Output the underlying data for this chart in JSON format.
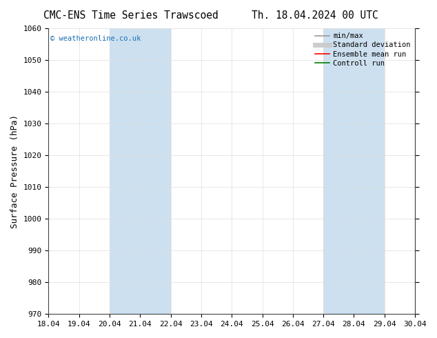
{
  "title": "CMC-ENS Time Series Trawscoed",
  "title2": "Th. 18.04.2024 00 UTC",
  "ylabel": "Surface Pressure (hPa)",
  "ylim": [
    970,
    1060
  ],
  "yticks": [
    970,
    980,
    990,
    1000,
    1010,
    1020,
    1030,
    1040,
    1050,
    1060
  ],
  "xlim_start": 0,
  "xlim_end": 12,
  "xtick_positions": [
    0,
    1,
    2,
    3,
    4,
    5,
    6,
    7,
    8,
    9,
    10,
    11,
    12
  ],
  "xtick_labels": [
    "18.04",
    "19.04",
    "20.04",
    "21.04",
    "22.04",
    "23.04",
    "24.04",
    "25.04",
    "26.04",
    "27.04",
    "28.04",
    "29.04",
    "30.04"
  ],
  "shaded_regions": [
    {
      "xstart": 2,
      "xend": 4,
      "color": "#cce0f0"
    },
    {
      "xstart": 9,
      "xend": 11,
      "color": "#cce0f0"
    }
  ],
  "watermark": "© weatheronline.co.uk",
  "watermark_color": "#1a6eb5",
  "legend_entries": [
    {
      "label": "min/max",
      "color": "#999999",
      "lw": 1.2,
      "ls": "-"
    },
    {
      "label": "Standard deviation",
      "color": "#cccccc",
      "lw": 5,
      "ls": "-"
    },
    {
      "label": "Ensemble mean run",
      "color": "red",
      "lw": 1.2,
      "ls": "-"
    },
    {
      "label": "Controll run",
      "color": "green",
      "lw": 1.2,
      "ls": "-"
    }
  ],
  "bg_color": "#ffffff",
  "plot_bg_color": "#ffffff",
  "grid_color": "#dddddd",
  "title_fontsize": 10.5,
  "label_fontsize": 9,
  "tick_fontsize": 8,
  "legend_fontsize": 7.5
}
